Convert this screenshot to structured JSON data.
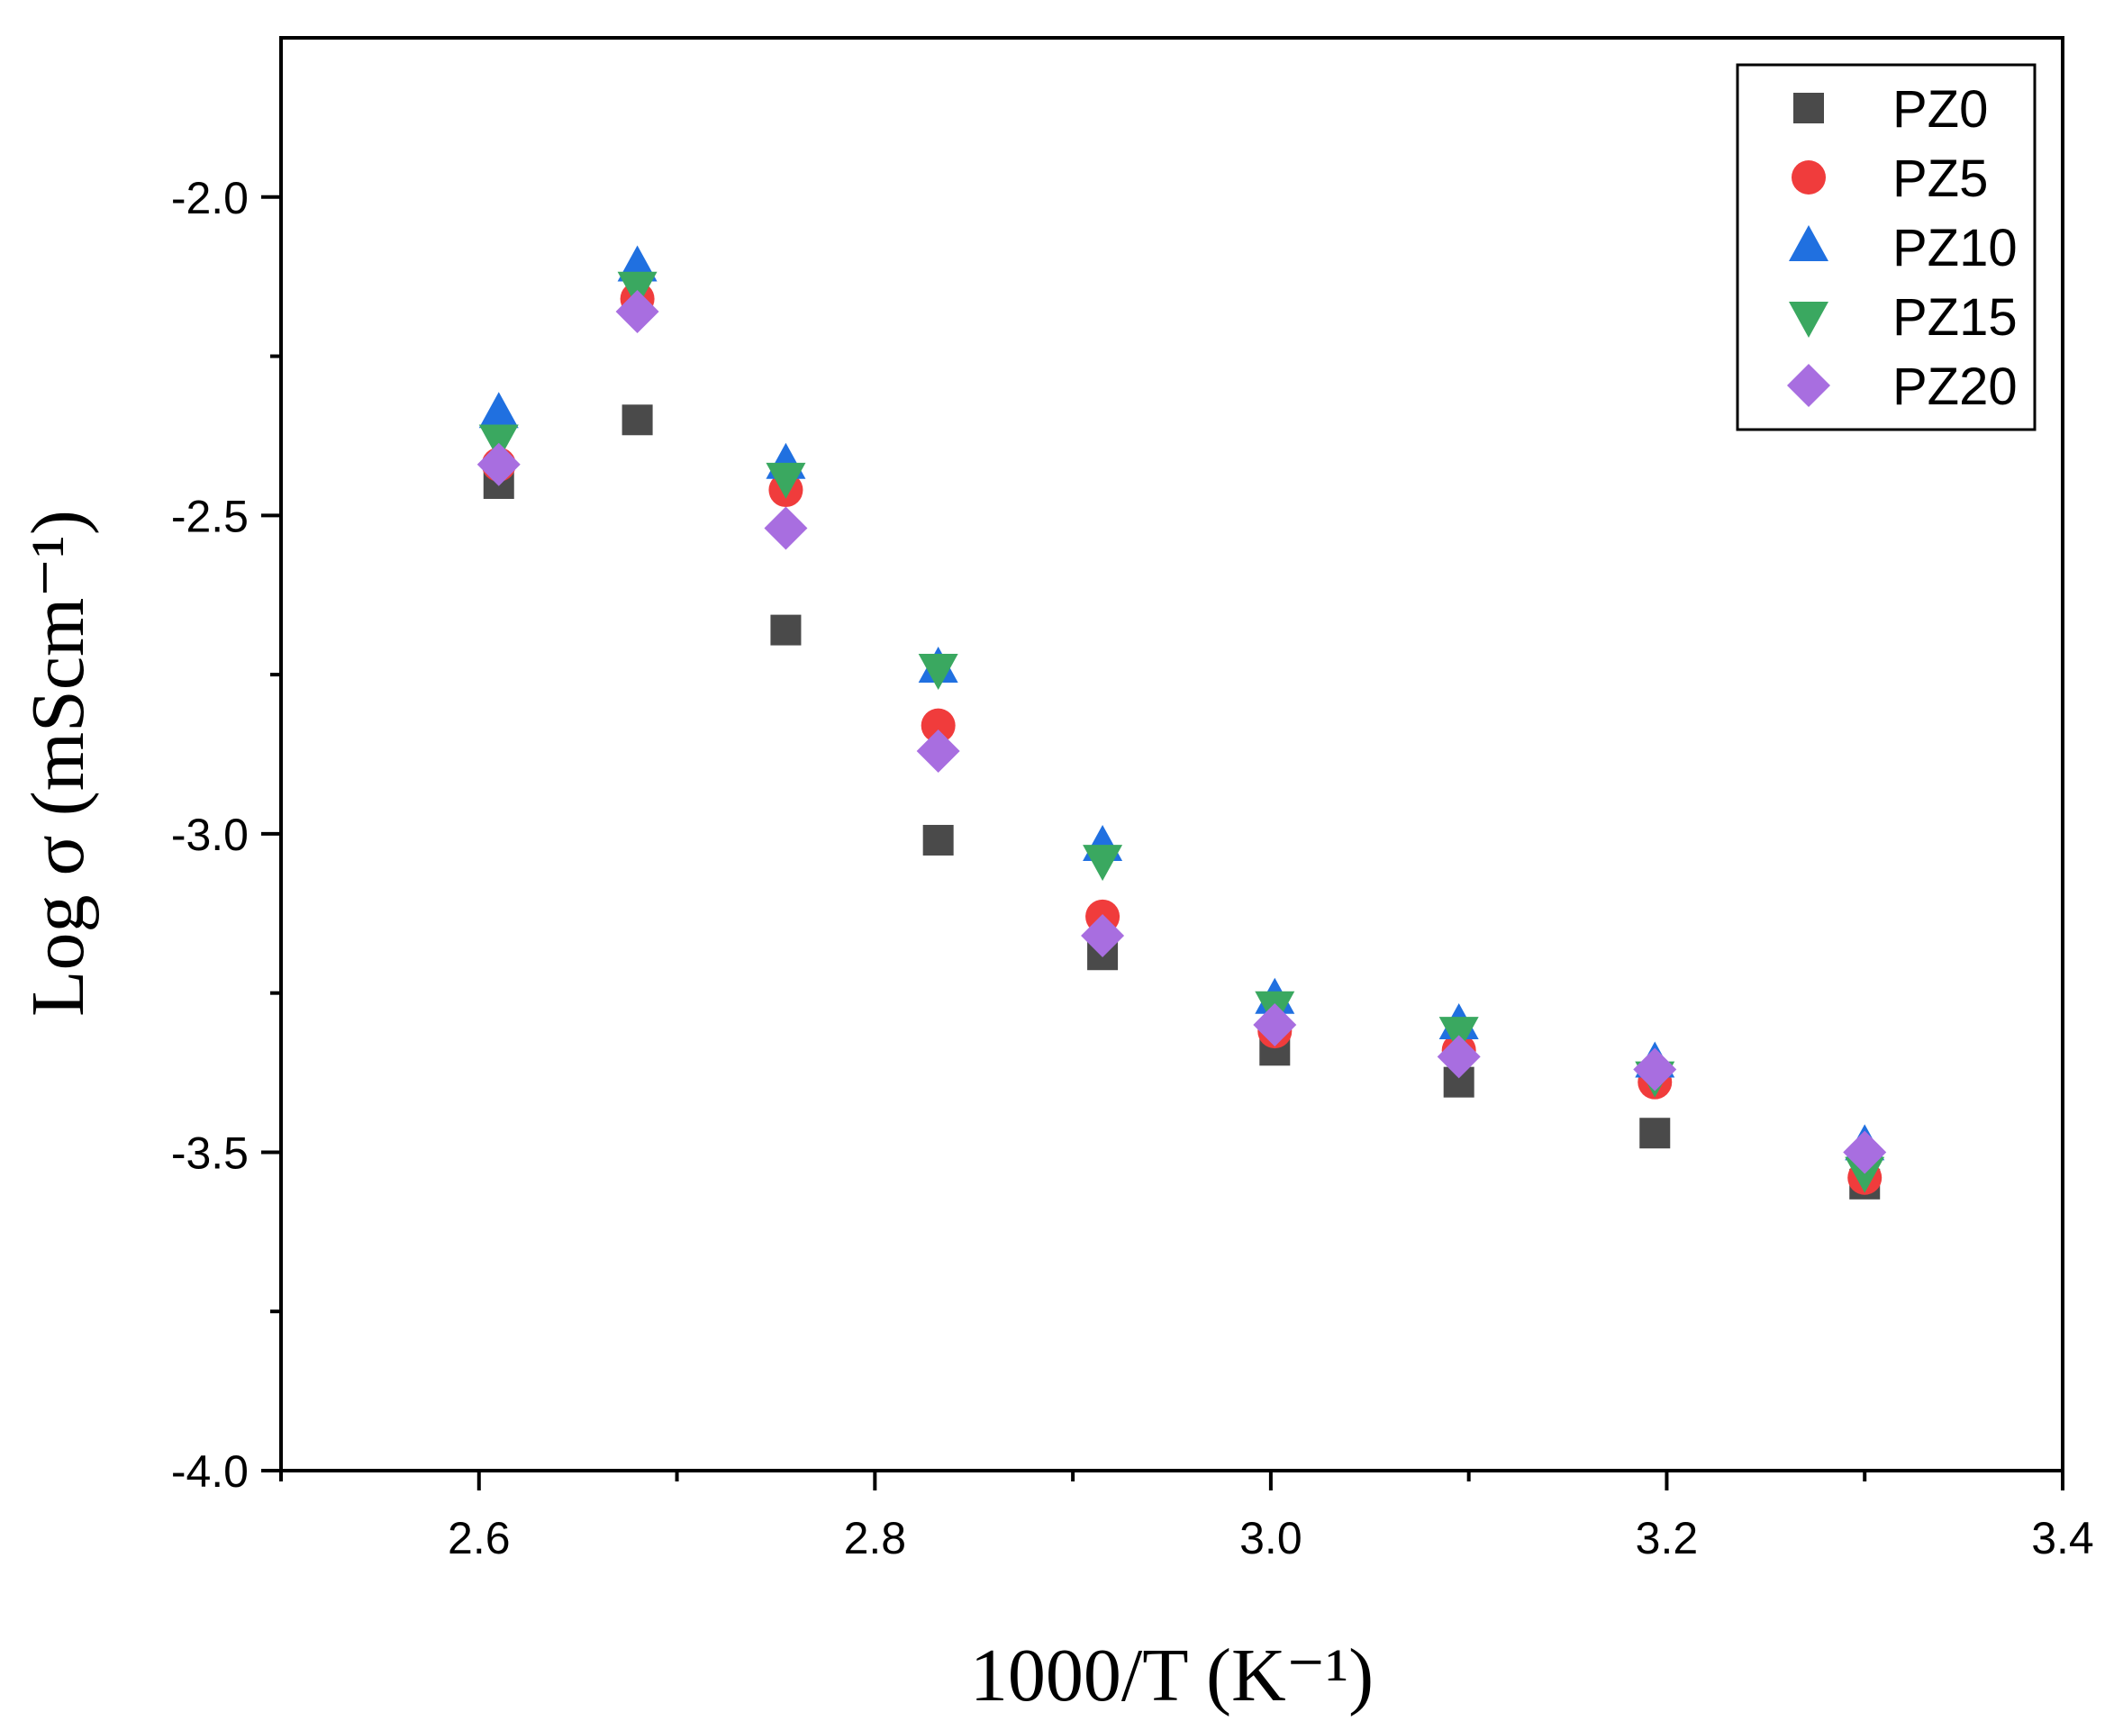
{
  "chart_data": {
    "type": "scatter",
    "title": "",
    "xlabel": "1000/T (K⁻¹)",
    "ylabel": "Log σ (mScm⁻¹)",
    "xlim": [
      2.5,
      3.4
    ],
    "ylim": [
      -4.0,
      -1.75
    ],
    "x_ticks": [
      2.6,
      2.8,
      3.0,
      3.2,
      3.4
    ],
    "x_tick_labels": [
      "2.6",
      "2.8",
      "3.0",
      "3.2",
      "3.4"
    ],
    "y_ticks": [
      -4.0,
      -3.5,
      -3.0,
      -2.5,
      -2.0
    ],
    "y_tick_labels": [
      "-4.0",
      "-3.5",
      "-3.0",
      "-2.5",
      "-2.0"
    ],
    "grid": false,
    "legend_position": "top-right",
    "x": [
      2.61,
      2.68,
      2.755,
      2.832,
      2.915,
      3.002,
      3.095,
      3.194,
      3.3
    ],
    "series": [
      {
        "name": "PZ0",
        "marker": "square",
        "color": "#4a4a4a",
        "values": [
          -2.45,
          -2.35,
          -2.68,
          -3.01,
          -3.19,
          -3.34,
          -3.39,
          -3.47,
          -3.55
        ]
      },
      {
        "name": "PZ5",
        "marker": "circle",
        "color": "#f03c3c",
        "values": [
          -2.42,
          -2.16,
          -2.46,
          -2.83,
          -3.13,
          -3.31,
          -3.34,
          -3.39,
          -3.54
        ]
      },
      {
        "name": "PZ10",
        "marker": "triangle-up",
        "color": "#2070e0",
        "values": [
          -2.34,
          -2.11,
          -2.42,
          -2.74,
          -3.02,
          -3.26,
          -3.3,
          -3.36,
          -3.49
        ]
      },
      {
        "name": "PZ15",
        "marker": "triangle-down",
        "color": "#3aa860",
        "values": [
          -2.38,
          -2.14,
          -2.44,
          -2.74,
          -3.04,
          -3.27,
          -3.31,
          -3.38,
          -3.53
        ]
      },
      {
        "name": "PZ20",
        "marker": "diamond",
        "color": "#a86ee0",
        "values": [
          -2.42,
          -2.18,
          -2.52,
          -2.87,
          -3.16,
          -3.3,
          -3.35,
          -3.37,
          -3.5
        ]
      }
    ]
  }
}
